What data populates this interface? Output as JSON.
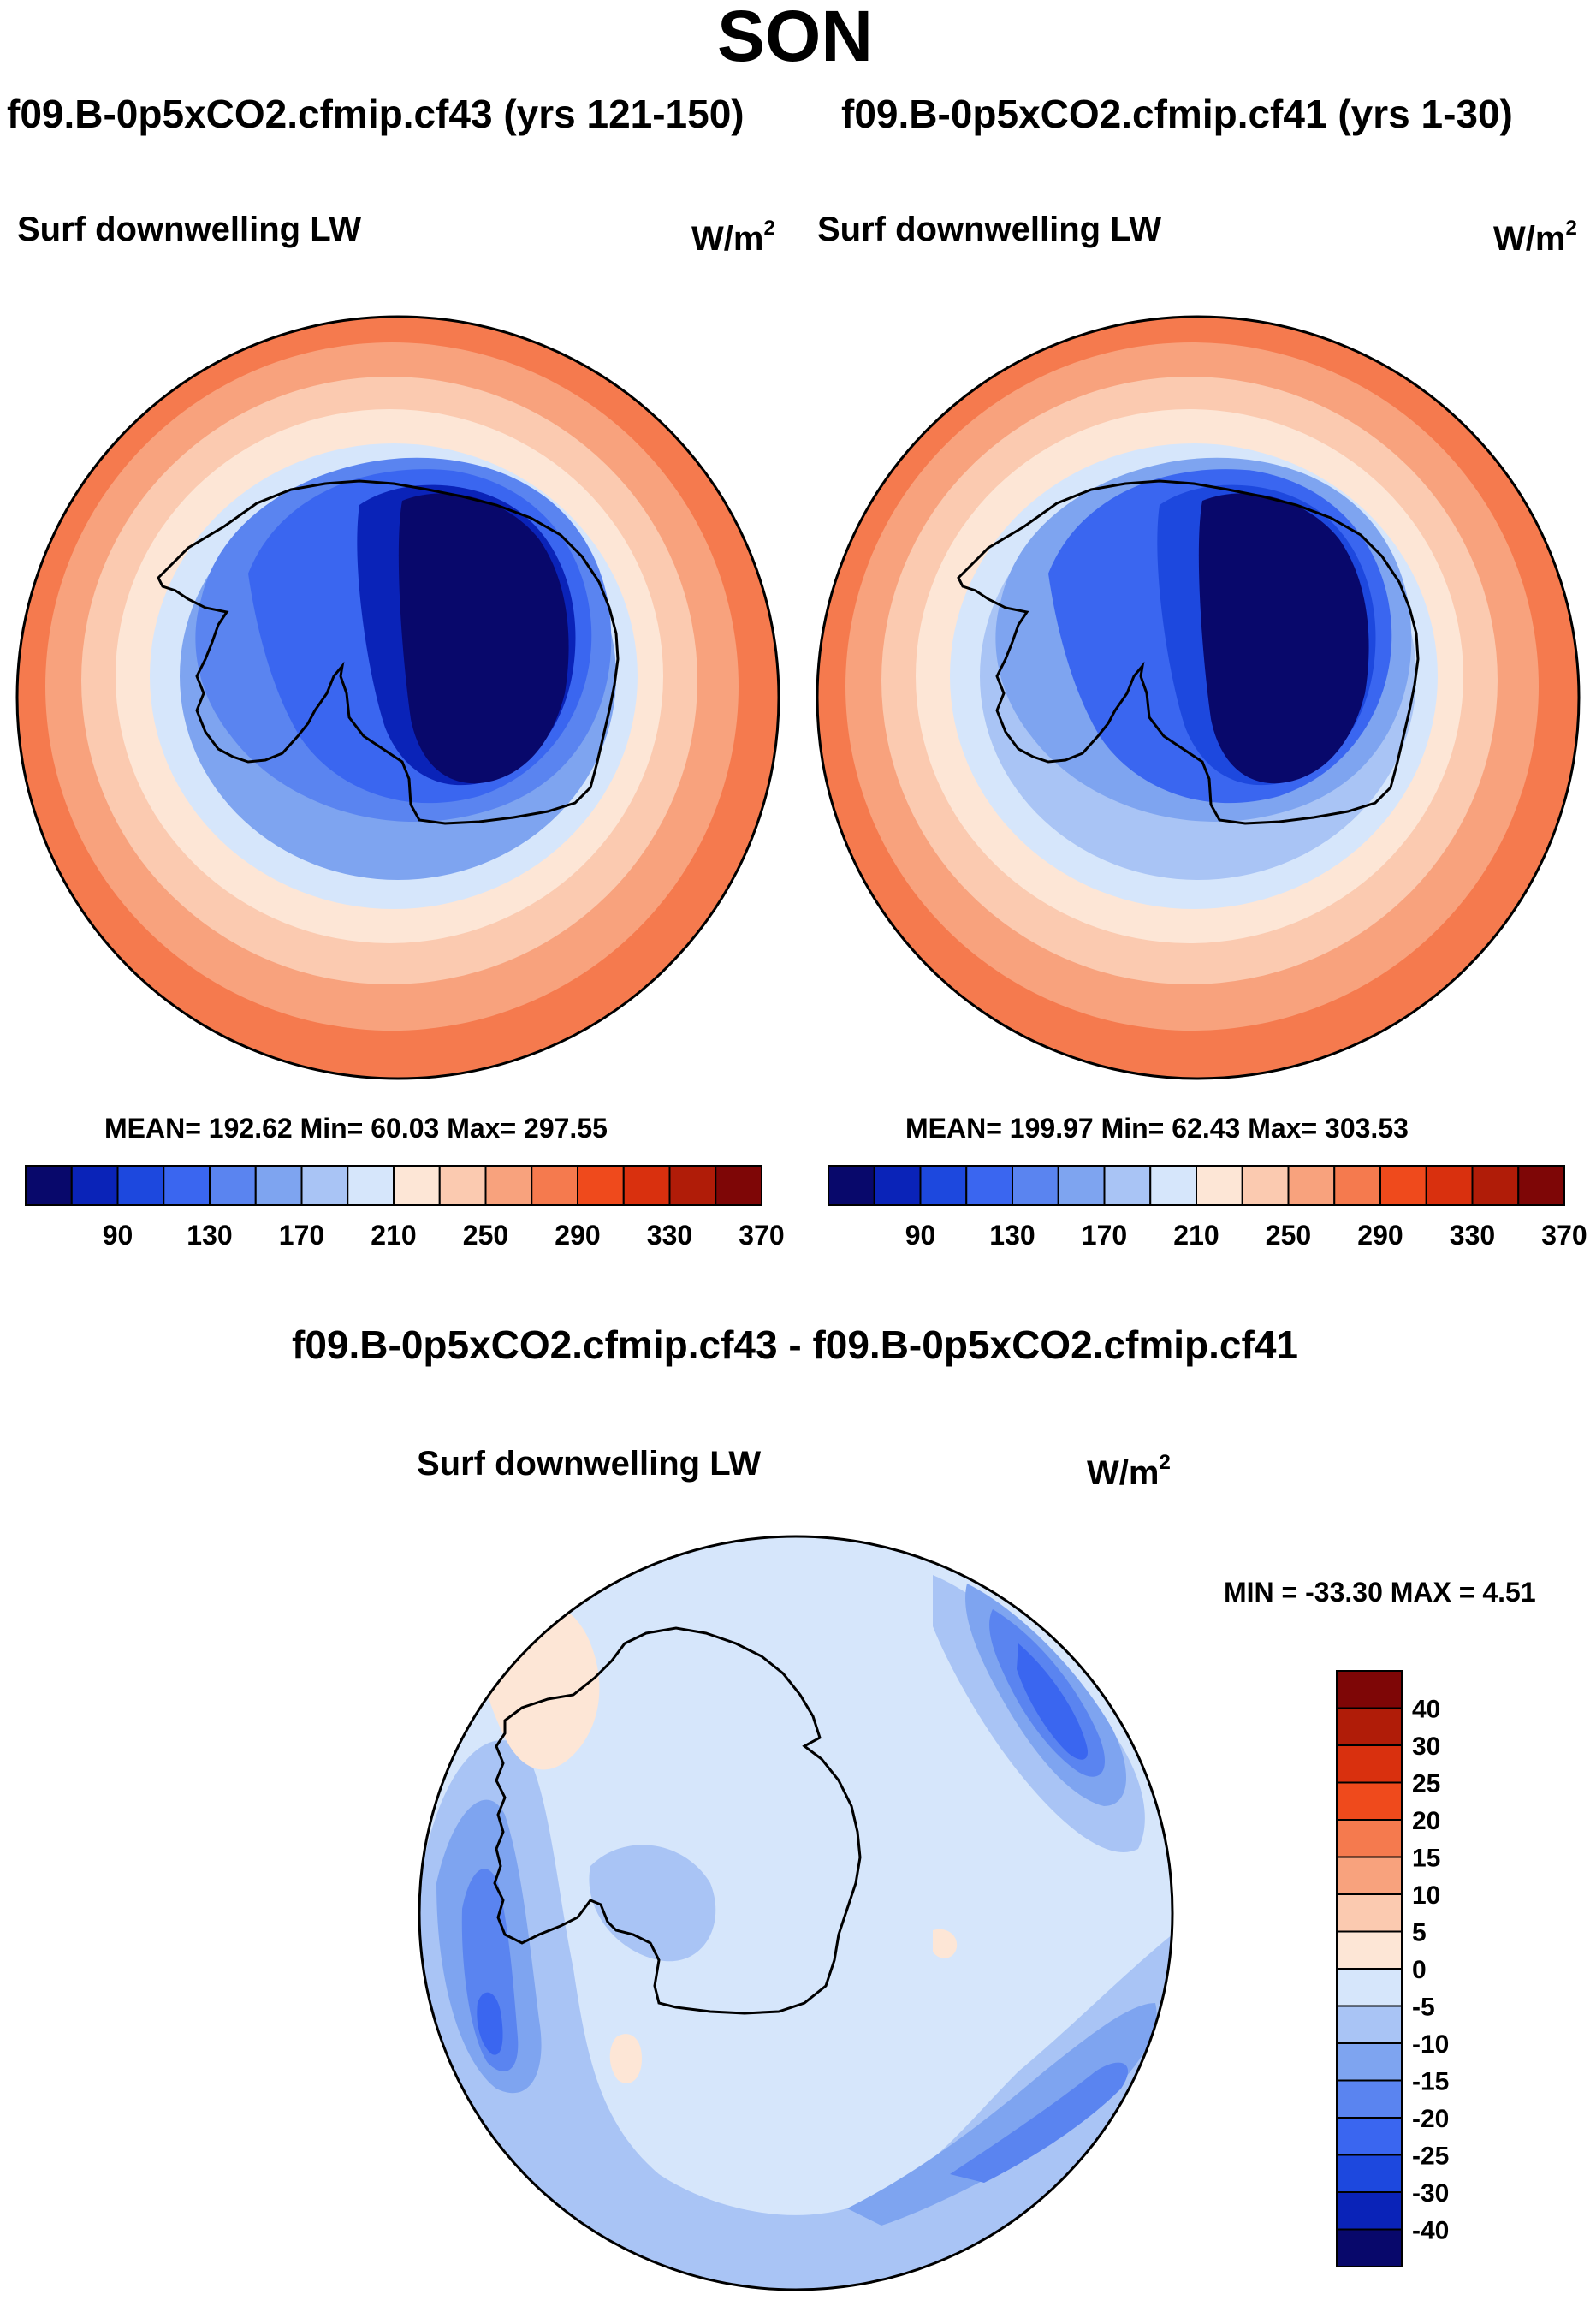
{
  "page": {
    "title": "SON"
  },
  "panels": [
    {
      "experiment": "f09.B-0p5xCO2.cfmip.cf43 (yrs 121-150)",
      "variable": "Surf downwelling LW",
      "units": "W/m",
      "units_sup": "2",
      "stats": "MEAN= 192.62  Min=  60.03  Max= 297.55"
    },
    {
      "experiment": "f09.B-0p5xCO2.cfmip.cf41 (yrs 1-30)",
      "variable": "Surf downwelling LW",
      "units": "W/m",
      "units_sup": "2",
      "stats": "MEAN= 199.97  Min=  62.43  Max= 303.53"
    }
  ],
  "diff_panel": {
    "experiment": "f09.B-0p5xCO2.cfmip.cf43 - f09.B-0p5xCO2.cfmip.cf41",
    "variable": "Surf downwelling LW",
    "units": "W/m",
    "units_sup": "2",
    "stats": "MIN = -33.30 MAX =   4.51"
  },
  "chart_data": [
    {
      "type": "heatmap",
      "projection": "south-polar-stereographic",
      "title": "Surf downwelling LW",
      "subtitle": "f09.B-0p5xCO2.cfmip.cf43 (yrs 121-150)",
      "units": "W/m2",
      "mean": 192.62,
      "min": 60.03,
      "max": 297.55,
      "colorbar_levels": [
        80,
        90,
        110,
        130,
        150,
        170,
        190,
        210,
        230,
        250,
        270,
        290,
        310,
        330,
        350,
        370
      ],
      "colorbar_ticks": [
        "90",
        "130",
        "170",
        "210",
        "250",
        "290",
        "330",
        "370"
      ],
      "colorbar_colors": [
        "#08086b",
        "#0a23b8",
        "#1d48de",
        "#3a66f0",
        "#5a84f0",
        "#7ea4f0",
        "#a9c4f5",
        "#d6e6fb",
        "#fde6d6",
        "#fbcab0",
        "#f8a27d",
        "#f57a4e",
        "#ef4a1c",
        "#d9300e",
        "#b01c08",
        "#7e0606"
      ],
      "zone_values": [
        292,
        270,
        252,
        235,
        212,
        186,
        160,
        130,
        100,
        75
      ]
    },
    {
      "type": "heatmap",
      "projection": "south-polar-stereographic",
      "title": "Surf downwelling LW",
      "subtitle": "f09.B-0p5xCO2.cfmip.cf41 (yrs 1-30)",
      "units": "W/m2",
      "mean": 199.97,
      "min": 62.43,
      "max": 303.53,
      "colorbar_levels": [
        80,
        90,
        110,
        130,
        150,
        170,
        190,
        210,
        230,
        250,
        270,
        290,
        310,
        330,
        350,
        370
      ],
      "colorbar_ticks": [
        "90",
        "130",
        "170",
        "210",
        "250",
        "290",
        "330",
        "370"
      ],
      "colorbar_colors": [
        "#08086b",
        "#0a23b8",
        "#1d48de",
        "#3a66f0",
        "#5a84f0",
        "#7ea4f0",
        "#a9c4f5",
        "#d6e6fb",
        "#fde6d6",
        "#fbcab0",
        "#f8a27d",
        "#f57a4e",
        "#ef4a1c",
        "#d9300e",
        "#b01c08",
        "#7e0606"
      ],
      "zone_values": [
        300,
        282,
        262,
        245,
        222,
        196,
        170,
        140,
        110,
        80
      ]
    },
    {
      "type": "heatmap",
      "projection": "south-polar-stereographic",
      "title": "Surf downwelling LW",
      "subtitle": "f09.B-0p5xCO2.cfmip.cf43 - f09.B-0p5xCO2.cfmip.cf41",
      "units": "W/m2",
      "min": -33.3,
      "max": 4.51,
      "colorbar_orientation": "vertical",
      "colorbar_ticks": [
        "40",
        "30",
        "25",
        "20",
        "15",
        "10",
        "5",
        "0",
        "-5",
        "-10",
        "-15",
        "-20",
        "-25",
        "-30",
        "-40"
      ],
      "colorbar_colors": [
        "#7e0606",
        "#b01c08",
        "#d9300e",
        "#ef4a1c",
        "#f57a4e",
        "#f8a27d",
        "#fbcab0",
        "#fde6d6",
        "#d6e6fb",
        "#a9c4f5",
        "#7ea4f0",
        "#5a84f0",
        "#3a66f0",
        "#1d48de",
        "#0a23b8",
        "#08086b"
      ],
      "base_value": -4
    }
  ]
}
